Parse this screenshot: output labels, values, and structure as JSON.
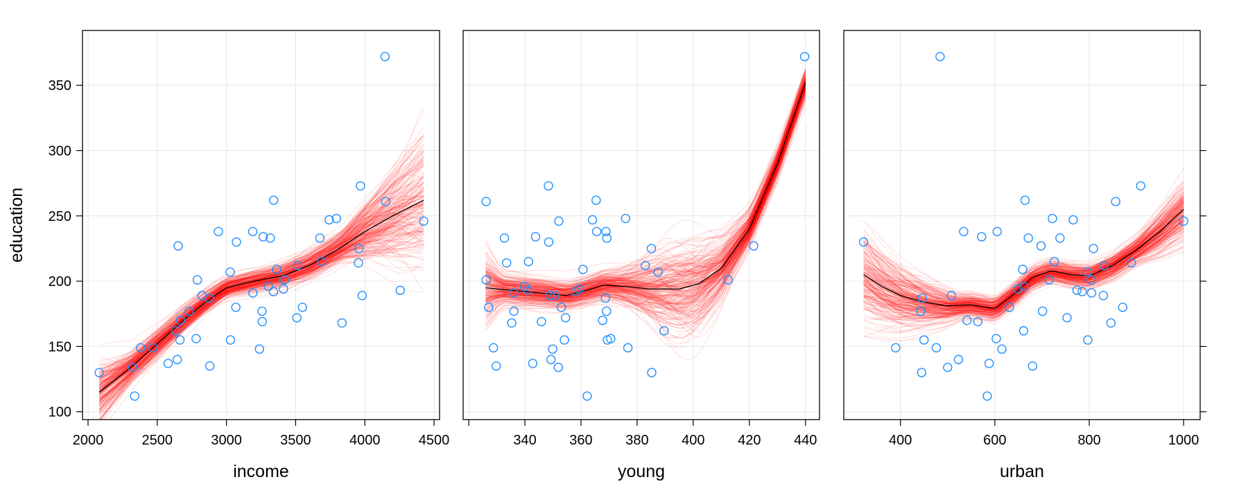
{
  "ylabel": "education",
  "colors": {
    "points": "#1E8FFF",
    "bootstrap": "#FF0000",
    "smooth": "#000000",
    "grid": "#E6E6E6"
  },
  "chart_data": [
    {
      "type": "scatter",
      "xlabel": "income",
      "xlim": [
        1960,
        4540
      ],
      "xticks": [
        2000,
        2500,
        3000,
        3500,
        4000,
        4500
      ],
      "xtick_labels": [
        "2000",
        "2500",
        "3000",
        "3500",
        "4000",
        "4500"
      ],
      "x": [
        2824,
        3259,
        3072,
        3835,
        3549,
        4256,
        4151,
        3954,
        3419,
        3509,
        3412,
        3981,
        3675,
        3363,
        3341,
        3265,
        3257,
        2730,
        2876,
        3239,
        3303,
        3795,
        3742,
        4425,
        3068,
        2470,
        2664,
        2380,
        2781,
        3191,
        2645,
        2579,
        2337,
        2081,
        2322,
        2634,
        2880,
        3029,
        2942,
        2668,
        3190,
        3340,
        2651,
        3027,
        2790,
        3957,
        3688,
        3317,
        3968,
        4146,
        3513
      ],
      "smooth": {
        "x": [
          2081,
          2300,
          2500,
          2700,
          2850,
          3000,
          3200,
          3400,
          3600,
          3800,
          4000,
          4200,
          4425
        ],
        "y": [
          115,
          133,
          152,
          171,
          184,
          195,
          200,
          204,
          212,
          224,
          238,
          250,
          262
        ]
      }
    },
    {
      "type": "scatter",
      "xlabel": "young",
      "xlim": [
        318,
        445
      ],
      "xticks": [
        320,
        340,
        360,
        380,
        400,
        420,
        440
      ],
      "xtick_labels": [
        "",
        "340",
        "360",
        "380",
        "400",
        "420",
        "440"
      ],
      "x": [
        350.7,
        345.9,
        348.5,
        335.3,
        327.1,
        341.0,
        326.2,
        333.5,
        326.2,
        354.5,
        359.3,
        348.9,
        369.2,
        360.7,
        365.4,
        343.8,
        336.1,
        369.1,
        368.7,
        349.9,
        339.9,
        375.9,
        364.1,
        352.1,
        353.0,
        328.8,
        354.1,
        376.7,
        370.6,
        336.0,
        349.3,
        342.8,
        362.2,
        385.2,
        351.9,
        389.6,
        329.8,
        369.4,
        368.9,
        367.7,
        365.6,
        358.1,
        421.5,
        387.5,
        412.4,
        385.1,
        341.3,
        332.7,
        348.4,
        439.7,
        382.9
      ],
      "smooth": {
        "x": [
          326,
          335,
          345,
          355,
          362,
          368,
          375,
          385,
          395,
          402,
          410,
          420,
          430,
          440
        ],
        "y": [
          195,
          193,
          191,
          189,
          193,
          197,
          196,
          194,
          194,
          198,
          210,
          240,
          290,
          352
        ]
      }
    },
    {
      "type": "scatter",
      "xlabel": "urban",
      "xlim": [
        280,
        1035
      ],
      "xticks": [
        400,
        600,
        800,
        1000
      ],
      "xtick_labels": [
        "400",
        "600",
        "800",
        "1000"
      ],
      "x": [
        508,
        564,
        322,
        846,
        871,
        774,
        856,
        889,
        715,
        753,
        649,
        830,
        738,
        659,
        664,
        572,
        701,
        443,
        446,
        615,
        661,
        722,
        766,
        1000,
        631,
        390,
        450,
        476,
        603,
        805,
        523,
        588,
        584,
        445,
        500,
        661,
        680,
        797,
        534,
        541,
        605,
        785,
        698,
        796,
        804,
        809,
        726,
        671,
        909,
        484,
        831
      ],
      "smooth": {
        "x": [
          322,
          360,
          400,
          450,
          500,
          550,
          600,
          640,
          680,
          720,
          760,
          800,
          850,
          900,
          950,
          1000
        ],
        "y": [
          205,
          196,
          189,
          184,
          181,
          182,
          179,
          190,
          203,
          208,
          205,
          204,
          212,
          224,
          238,
          255
        ]
      }
    }
  ],
  "y": [
    189,
    169,
    230,
    168,
    180,
    193,
    261,
    214,
    201,
    172,
    194,
    189,
    233,
    209,
    262,
    234,
    177,
    177,
    187,
    148,
    196,
    248,
    247,
    246,
    180,
    149,
    155,
    149,
    156,
    191,
    140,
    137,
    112,
    130,
    134,
    162,
    135,
    155,
    238,
    170,
    238,
    192,
    227,
    207,
    201,
    225,
    215,
    233,
    273,
    372,
    212
  ],
  "ylim": [
    94,
    392
  ],
  "yticks": [
    100,
    150,
    200,
    250,
    300,
    350
  ],
  "ytick_labels": [
    "100",
    "150",
    "200",
    "250",
    "300",
    "350"
  ]
}
